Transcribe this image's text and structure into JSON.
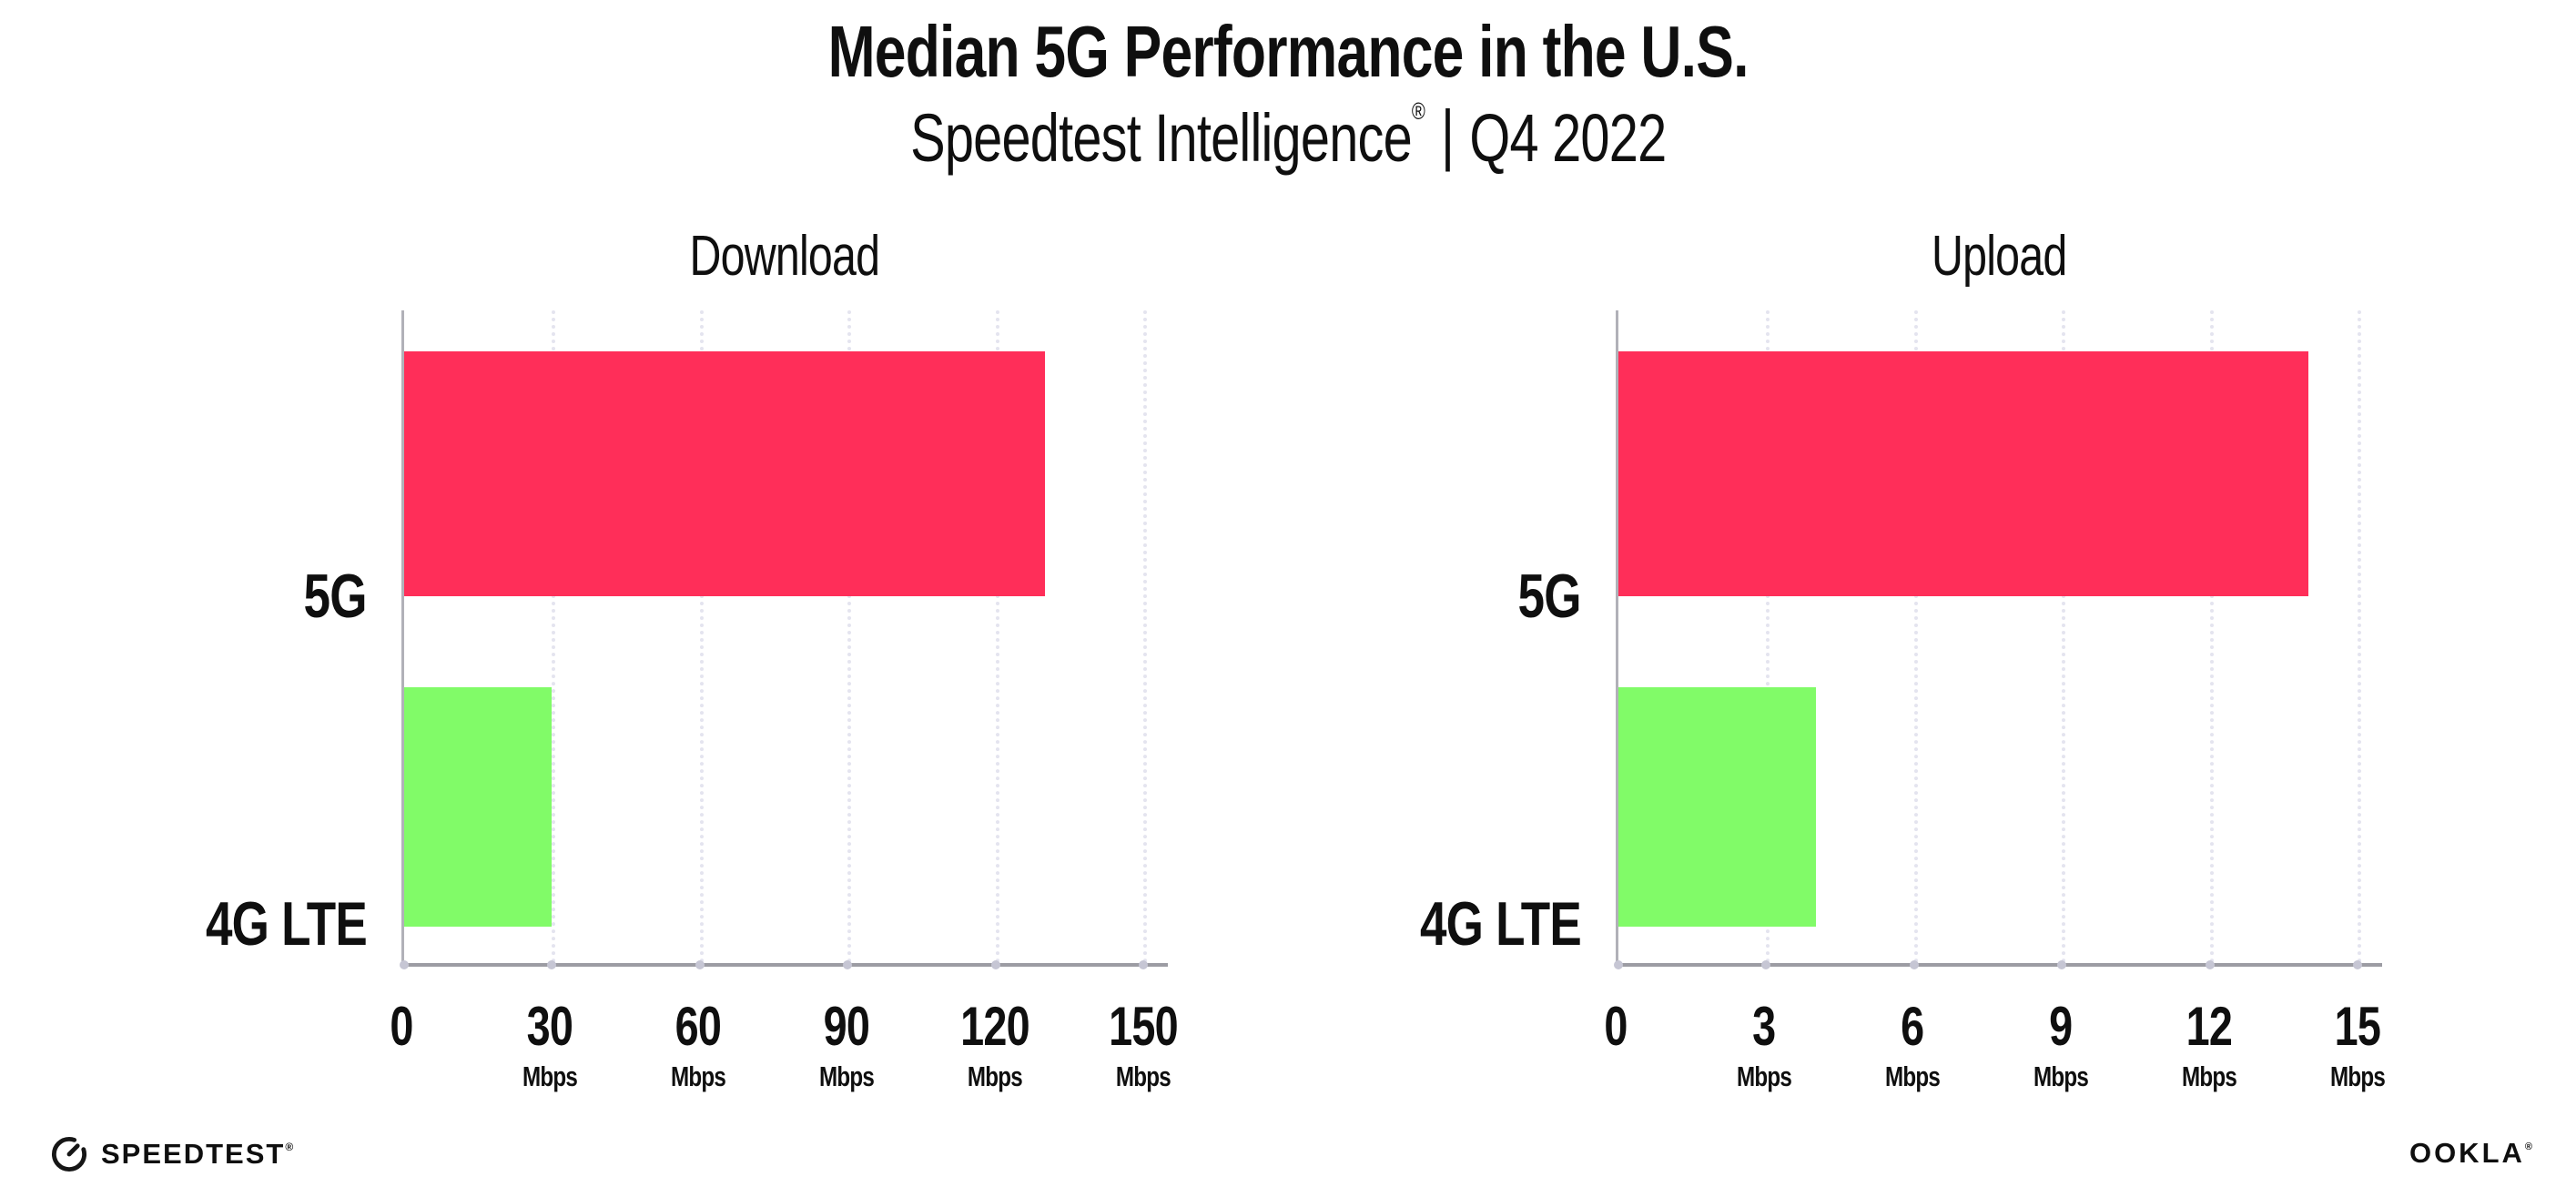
{
  "header": {
    "title": "Median 5G Performance in the U.S.",
    "subtitle_brand": "Speedtest Intelligence",
    "subtitle_reg": "®",
    "subtitle_sep": "|",
    "subtitle_period": "Q4 2022"
  },
  "footer": {
    "speedtest_label": "SPEEDTEST",
    "speedtest_reg": "®",
    "ookla_label": "OOKLA",
    "ookla_reg": "®"
  },
  "chart_data": {
    "type": "bar",
    "orientation": "horizontal",
    "title": "Median 5G Performance in the U.S.",
    "subtitle": "Speedtest Intelligence® | Q4 2022",
    "categories": [
      "5G",
      "4G LTE"
    ],
    "colors": {
      "5G": "#FF2E59",
      "4G LTE": "#81FB68"
    },
    "grid": "vertical-dotted",
    "legend": "none",
    "panels": [
      {
        "title": "Download",
        "unit": "Mbps",
        "values": [
          130,
          30
        ],
        "xlim": [
          0,
          155
        ],
        "xticks": [
          0,
          30,
          60,
          90,
          120,
          150
        ]
      },
      {
        "title": "Upload",
        "unit": "Mbps",
        "values": [
          14,
          4
        ],
        "xlim": [
          0,
          15.5
        ],
        "xticks": [
          0,
          3,
          6,
          9,
          12,
          15
        ]
      }
    ]
  }
}
